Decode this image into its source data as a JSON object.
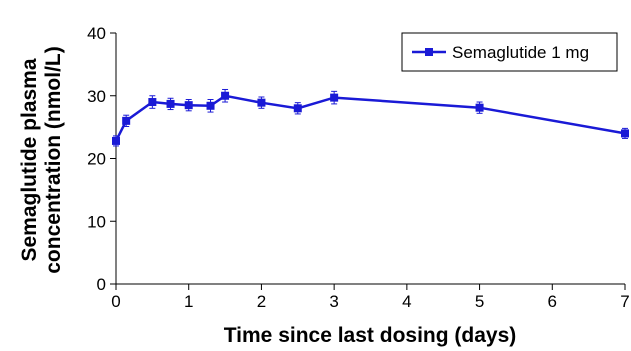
{
  "chart_data": {
    "type": "line",
    "title": "",
    "xlabel": "Time since last dosing (days)",
    "ylabel_line1": "Semaglutide plasma",
    "ylabel_line2": "concentration (nmol/L)",
    "xlim": [
      0,
      7
    ],
    "ylim": [
      0,
      40
    ],
    "x_ticks": [
      0,
      1,
      2,
      3,
      4,
      5,
      6,
      7
    ],
    "y_ticks": [
      0,
      10,
      20,
      30,
      40
    ],
    "grid": false,
    "legend_position": "top-right",
    "series": [
      {
        "name": "Semaglutide 1 mg",
        "color": "#1a1ad6",
        "marker": "square",
        "x": [
          0,
          0.14,
          0.5,
          0.75,
          1,
          1.3,
          1.5,
          2,
          2.5,
          3,
          5,
          7
        ],
        "y": [
          22.8,
          26.0,
          29.0,
          28.7,
          28.5,
          28.4,
          30.0,
          28.9,
          28.0,
          29.7,
          28.1,
          24.0
        ],
        "error": [
          0.8,
          0.9,
          1.0,
          0.9,
          0.9,
          1.0,
          1.0,
          0.9,
          0.9,
          1.0,
          0.9,
          0.8
        ]
      }
    ]
  }
}
